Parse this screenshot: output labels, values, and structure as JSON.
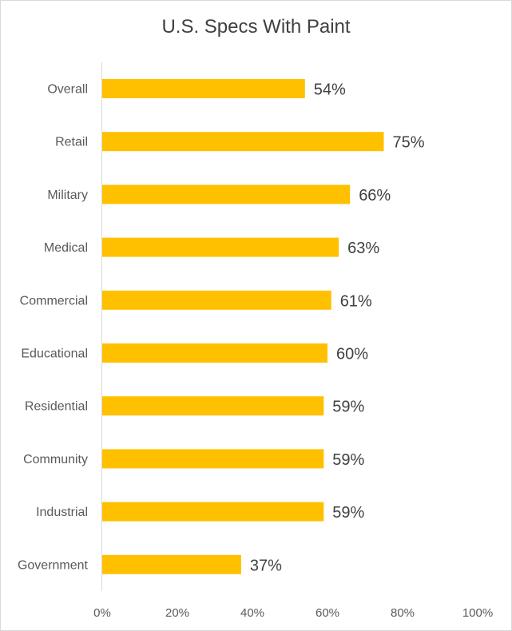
{
  "chart_data": {
    "type": "bar",
    "orientation": "horizontal",
    "title": "U.S. Specs With Paint",
    "categories": [
      "Overall",
      "Retail",
      "Military",
      "Medical",
      "Commercial",
      "Educational",
      "Residential",
      "Community",
      "Industrial",
      "Government"
    ],
    "values": [
      54,
      75,
      66,
      63,
      61,
      60,
      59,
      59,
      59,
      37
    ],
    "data_labels": [
      "54%",
      "75%",
      "66%",
      "63%",
      "61%",
      "60%",
      "59%",
      "59%",
      "59%",
      "37%"
    ],
    "xlim": [
      0,
      100
    ],
    "x_ticks": [
      0,
      20,
      40,
      60,
      80,
      100
    ],
    "x_tick_labels": [
      "0%",
      "20%",
      "40%",
      "60%",
      "80%",
      "100%"
    ],
    "bar_color": "#FFC000",
    "grid": false,
    "legend": "none"
  }
}
